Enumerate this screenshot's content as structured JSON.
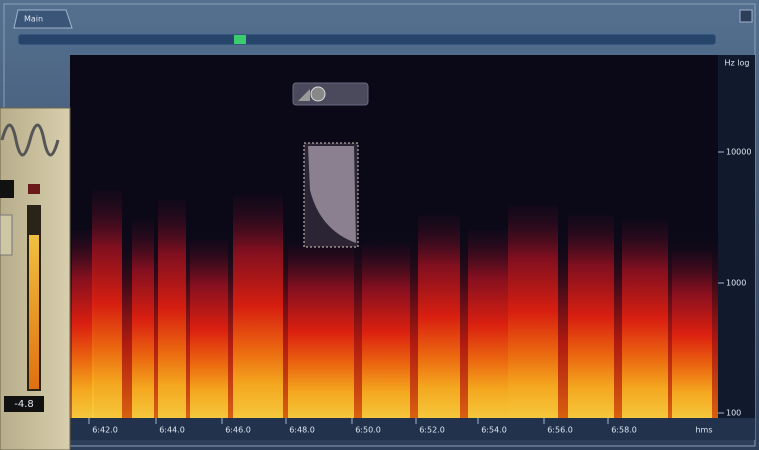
{
  "tab": "Main",
  "frequency_axis": {
    "unit": "Hz log",
    "labels": [
      "10000",
      "1000",
      "100"
    ]
  },
  "time_axis": {
    "labels": [
      "6:42.0",
      "6:44.0",
      "6:46.0",
      "6:48.0",
      "6:50.0",
      "6:52.0",
      "6:54.0",
      "6:56.0",
      "6:58.0"
    ],
    "unit": "hms"
  },
  "meter": {
    "value": "-4.8"
  }
}
